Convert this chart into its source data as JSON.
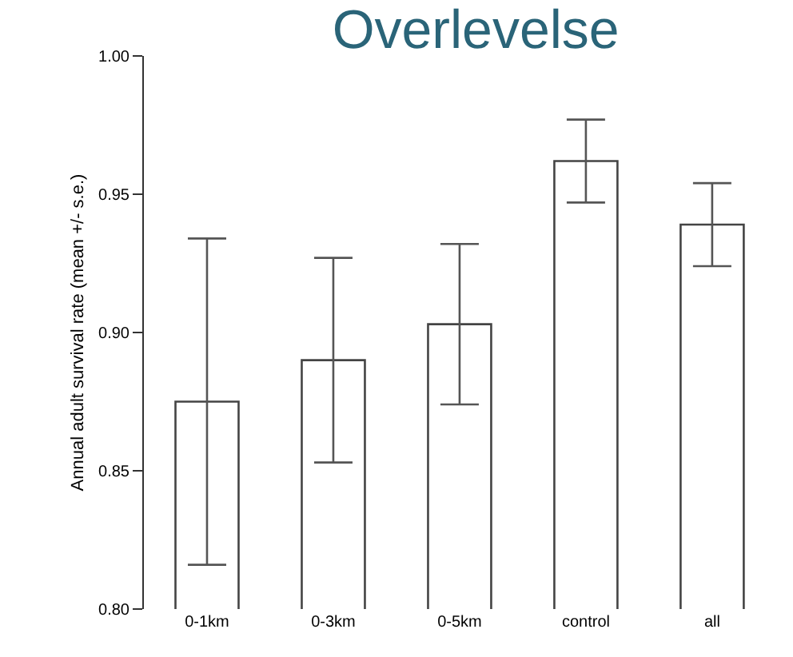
{
  "chart_data": {
    "type": "bar",
    "title": "Overlevelse",
    "ylabel": "Annual adult survival rate (mean +/- s.e.)",
    "categories": [
      "0-1km",
      "0-3km",
      "0-5km",
      "control",
      "all"
    ],
    "values": [
      0.875,
      0.89,
      0.903,
      0.962,
      0.939
    ],
    "errors": [
      0.059,
      0.037,
      0.029,
      0.015,
      0.015
    ],
    "color": "#ffffff",
    "ylim": [
      0.8,
      1.0
    ],
    "yticks": [
      {
        "value": 0.8,
        "label": "0.80"
      },
      {
        "value": 0.85,
        "label": "0.85"
      },
      {
        "value": 0.9,
        "label": "0.90"
      },
      {
        "value": 0.95,
        "label": "0.95"
      },
      {
        "value": 1.0,
        "label": "1.00"
      }
    ],
    "grid": false
  }
}
